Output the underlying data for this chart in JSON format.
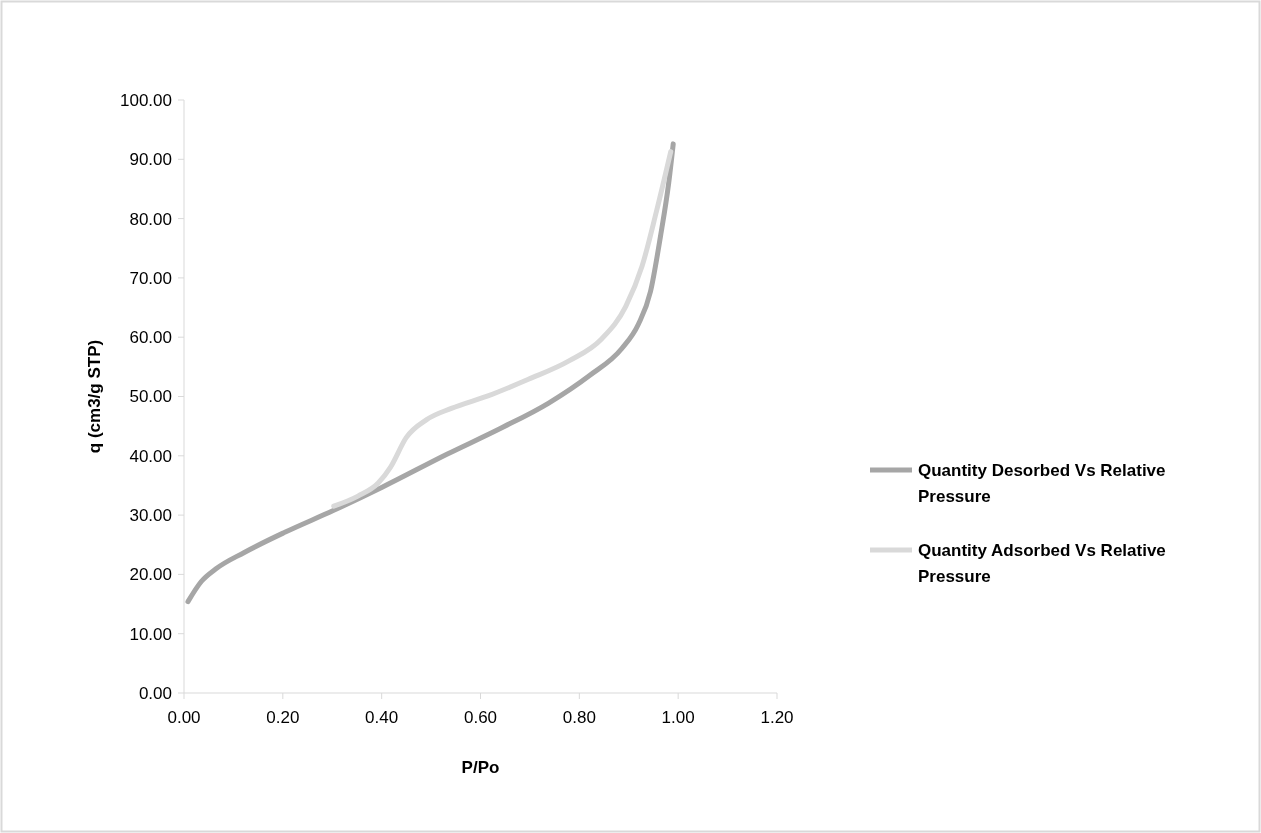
{
  "chart_data": {
    "type": "line",
    "xlabel": "P/Po",
    "ylabel": "q (cm3/g STP)",
    "xlim": [
      0,
      1.2
    ],
    "xticks": [
      {
        "value": 0,
        "label": "0.00"
      },
      {
        "value": 0.2,
        "label": "0.20"
      },
      {
        "value": 0.4,
        "label": "0.40"
      },
      {
        "value": 0.6,
        "label": "0.60"
      },
      {
        "value": 0.8,
        "label": "0.80"
      },
      {
        "value": 1,
        "label": "1.00"
      },
      {
        "value": 1.2,
        "label": "1.20"
      }
    ],
    "ylim": [
      0,
      100
    ],
    "yticks": [
      {
        "value": 0,
        "label": "0.00"
      },
      {
        "value": 10,
        "label": "10.00"
      },
      {
        "value": 20,
        "label": "20.00"
      },
      {
        "value": 30,
        "label": "30.00"
      },
      {
        "value": 40,
        "label": "40.00"
      },
      {
        "value": 50,
        "label": "50.00"
      },
      {
        "value": 60,
        "label": "60.00"
      },
      {
        "value": 70,
        "label": "70.00"
      },
      {
        "value": 80,
        "label": "80.00"
      },
      {
        "value": 90,
        "label": "90.00"
      },
      {
        "value": 100,
        "label": "100.00"
      }
    ],
    "grid": false,
    "legend": "right",
    "marker": "none",
    "line_style": "solid",
    "series": [
      {
        "name": "Quantity Desorbed Vs Relative Pressure",
        "color": "#a6a6a6",
        "x": [
          0.008,
          0.035,
          0.064,
          0.122,
          0.204,
          0.303,
          0.401,
          0.533,
          0.64,
          0.738,
          0.82,
          0.886,
          0.919,
          0.944,
          0.964,
          0.981,
          0.99
        ],
        "values": [
          15.4,
          18.8,
          20.9,
          23.7,
          27.1,
          30.8,
          34.7,
          40.3,
          44.6,
          48.9,
          53.5,
          58.1,
          62.1,
          67.7,
          76.9,
          86.1,
          92.6
        ]
      },
      {
        "name": "Quantity Adsorbed Vs Relative Pressure",
        "color": "#d9d9d9",
        "x": [
          0.303,
          0.352,
          0.393,
          0.418,
          0.45,
          0.491,
          0.541,
          0.615,
          0.697,
          0.779,
          0.845,
          0.894,
          0.927,
          0.956,
          0.985
        ],
        "values": [
          31.5,
          33.2,
          35.4,
          38.1,
          43.1,
          46.1,
          48,
          50.1,
          52.9,
          56,
          59.7,
          65.2,
          72,
          81.2,
          91.3
        ]
      }
    ]
  }
}
